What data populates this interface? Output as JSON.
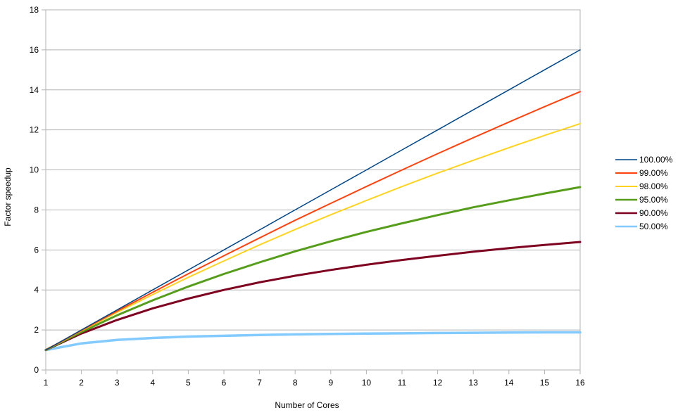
{
  "chart_data": {
    "type": "line",
    "title": "",
    "xlabel": "Number of Cores",
    "ylabel": "Factor speedup",
    "xlim": [
      1,
      16
    ],
    "ylim": [
      0,
      18
    ],
    "x": [
      1,
      2,
      3,
      4,
      5,
      6,
      7,
      8,
      9,
      10,
      11,
      12,
      13,
      14,
      15,
      16
    ],
    "x_ticks": [
      "1",
      "2",
      "3",
      "4",
      "5",
      "6",
      "7",
      "8",
      "9",
      "10",
      "11",
      "12",
      "13",
      "14",
      "15",
      "16"
    ],
    "y_ticks": [
      "0",
      "2",
      "4",
      "6",
      "8",
      "10",
      "12",
      "14",
      "16",
      "18"
    ],
    "grid": true,
    "legend_position": "right",
    "series": [
      {
        "name": "100.00%",
        "color": "#004586",
        "width": 1.5,
        "values": [
          1,
          2,
          3,
          4,
          5,
          6,
          7,
          8,
          9,
          10,
          11,
          12,
          13,
          14,
          15,
          16
        ]
      },
      {
        "name": "99.00%",
        "color": "#ff420e",
        "width": 2,
        "values": [
          1,
          1.98,
          2.94,
          3.88,
          4.81,
          5.71,
          6.6,
          7.48,
          8.33,
          9.17,
          10.0,
          10.81,
          11.61,
          12.39,
          13.16,
          13.91
        ]
      },
      {
        "name": "98.00%",
        "color": "#ffd320",
        "width": 2,
        "values": [
          1,
          1.96,
          2.88,
          3.77,
          4.63,
          5.45,
          6.25,
          7.02,
          7.76,
          8.47,
          9.17,
          9.84,
          10.48,
          11.11,
          11.72,
          12.31
        ]
      },
      {
        "name": "95.00%",
        "color": "#579d1c",
        "width": 3,
        "values": [
          1,
          1.9,
          2.73,
          3.48,
          4.17,
          4.8,
          5.38,
          5.93,
          6.43,
          6.9,
          7.33,
          7.74,
          8.13,
          8.48,
          8.82,
          9.14
        ]
      },
      {
        "name": "90.00%",
        "color": "#7e0021",
        "width": 3,
        "values": [
          1,
          1.82,
          2.5,
          3.08,
          3.57,
          4.0,
          4.38,
          4.71,
          5.0,
          5.26,
          5.5,
          5.71,
          5.91,
          6.09,
          6.25,
          6.4
        ]
      },
      {
        "name": "50.00%",
        "color": "#83caff",
        "width": 3.5,
        "values": [
          1,
          1.33,
          1.5,
          1.6,
          1.67,
          1.71,
          1.75,
          1.78,
          1.8,
          1.82,
          1.83,
          1.85,
          1.86,
          1.87,
          1.88,
          1.88
        ]
      }
    ]
  }
}
